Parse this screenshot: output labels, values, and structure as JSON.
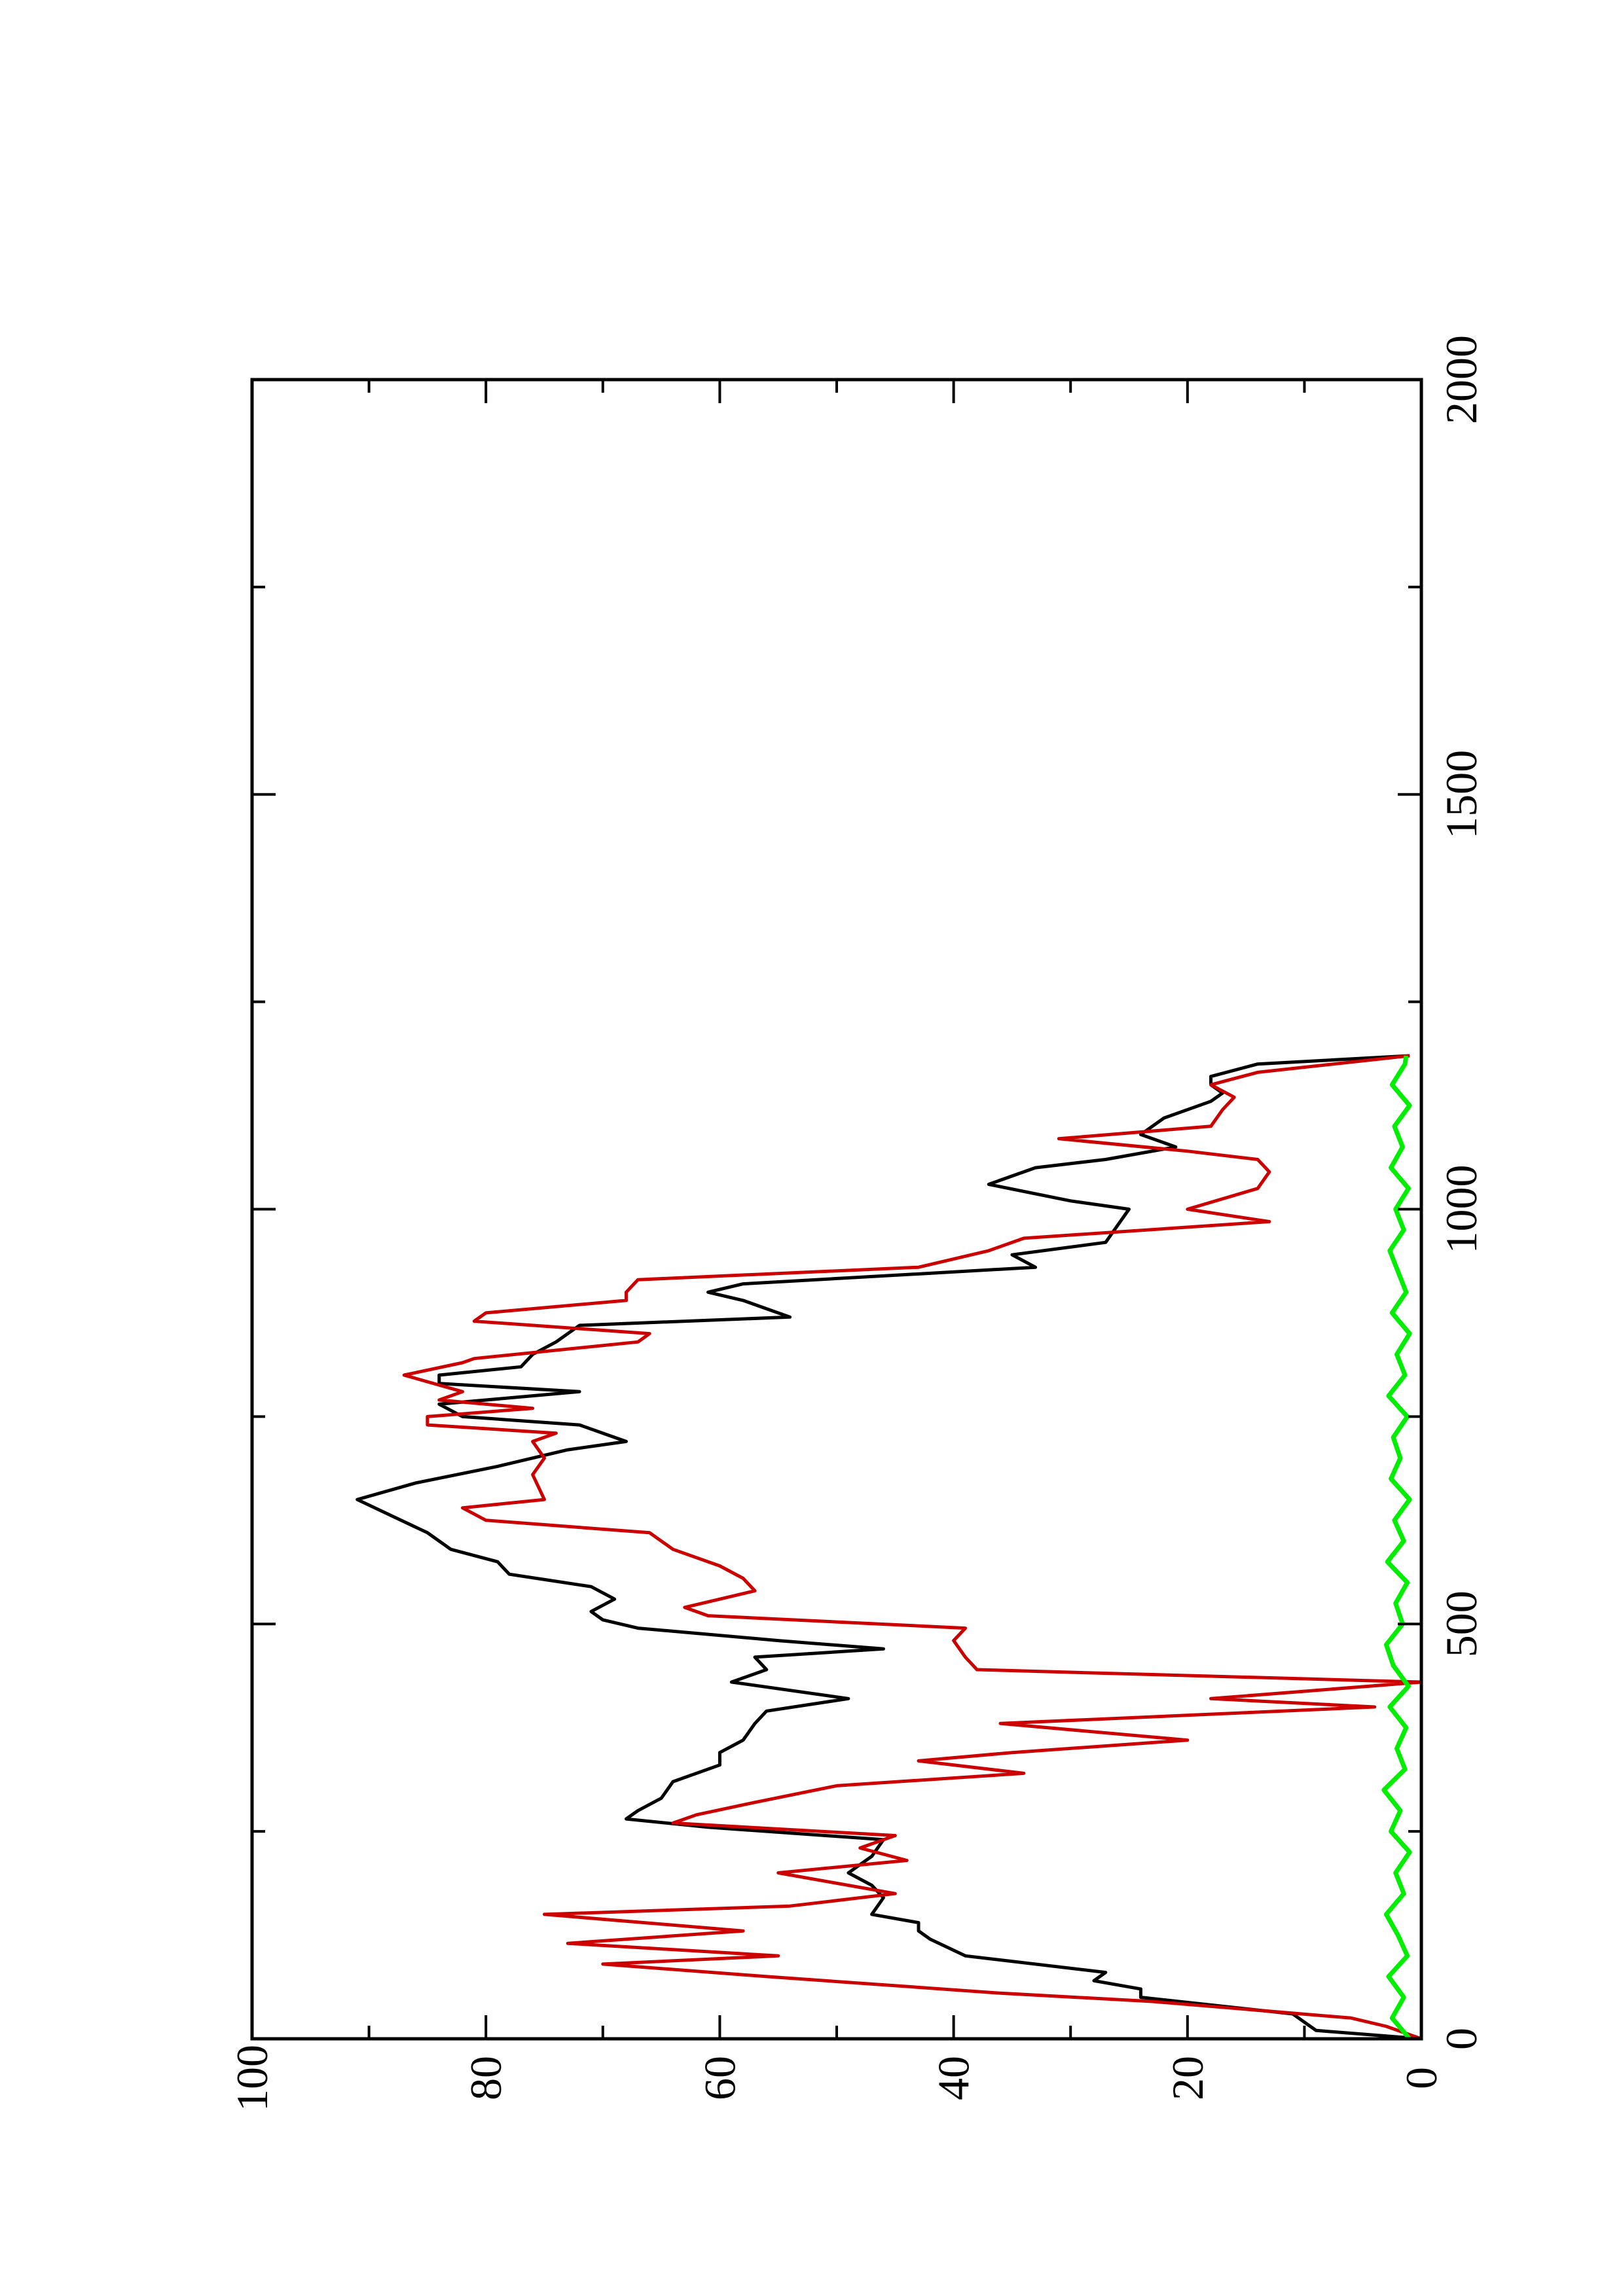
{
  "chart_data": {
    "type": "line",
    "title": "",
    "xlabel": "",
    "ylabel": "",
    "orientation": "rotated 90 degrees counter-clockwise",
    "xlim": [
      0,
      2000
    ],
    "ylim": [
      0,
      100
    ],
    "x_ticks": [
      "0",
      "500",
      "1000",
      "1500",
      "2000"
    ],
    "y_ticks": [
      "0",
      "20",
      "40",
      "60",
      "80",
      "100"
    ],
    "grid": false,
    "legend": "none",
    "series": [
      {
        "color": "#000000",
        "x": [
          0,
          10,
          30,
          50,
          60,
          70,
          80,
          100,
          120,
          130,
          140,
          150,
          170,
          185,
          200,
          220,
          240,
          255,
          265,
          275,
          290,
          310,
          330,
          345,
          360,
          380,
          395,
          410,
          430,
          445,
          460,
          470,
          480,
          495,
          505,
          515,
          530,
          545,
          560,
          575,
          590,
          610,
          630,
          650,
          670,
          690,
          710,
          720,
          725,
          740,
          750,
          765,
          780,
          790,
          800,
          810,
          825,
          840,
          850,
          860,
          870,
          880,
          890,
          900,
          910,
          930,
          945,
          960,
          980,
          1000,
          1010,
          1030,
          1050,
          1060,
          1075,
          1090,
          1110,
          1130,
          1140,
          1150,
          1160,
          1175,
          1185
        ],
        "y": [
          0,
          9,
          11,
          24,
          24,
          28,
          27,
          39,
          42,
          43,
          43,
          47,
          46,
          47,
          49,
          47,
          46,
          61,
          68,
          67,
          65,
          64,
          60,
          60,
          58,
          57,
          56,
          49,
          59,
          56,
          57,
          46,
          55,
          67,
          70,
          71,
          69,
          71,
          78,
          79,
          83,
          85,
          88,
          91,
          86,
          79,
          73,
          68,
          69,
          72,
          82,
          84,
          72,
          84,
          84,
          77,
          76,
          74,
          73,
          72,
          54,
          56,
          58,
          61,
          58,
          33,
          35,
          27,
          26,
          25,
          30,
          37,
          33,
          27,
          21,
          24,
          22,
          18,
          17,
          18,
          18,
          14,
          1
        ]
      },
      {
        "color": "#cc0000",
        "x": [
          0,
          15,
          25,
          45,
          55,
          75,
          90,
          100,
          115,
          130,
          150,
          160,
          175,
          200,
          215,
          230,
          245,
          260,
          270,
          285,
          305,
          320,
          335,
          345,
          360,
          380,
          400,
          410,
          430,
          445,
          460,
          480,
          495,
          510,
          520,
          540,
          555,
          570,
          590,
          610,
          625,
          640,
          650,
          680,
          700,
          720,
          730,
          740,
          750,
          760,
          770,
          780,
          800,
          815,
          820,
          840,
          850,
          865,
          875,
          890,
          900,
          915,
          930,
          950,
          965,
          985,
          1000,
          1025,
          1045,
          1060,
          1070,
          1085,
          1100,
          1120,
          1135,
          1150,
          1165,
          1185
        ],
        "y": [
          0,
          3,
          6,
          23,
          36,
          56,
          70,
          55,
          73,
          58,
          75,
          54,
          45,
          55,
          44,
          48,
          45,
          64,
          62,
          57,
          50,
          34,
          43,
          35,
          20,
          36,
          4,
          18,
          0,
          38,
          39,
          40,
          39,
          61,
          63,
          57,
          58,
          60,
          64,
          66,
          80,
          82,
          75,
          76,
          75,
          76,
          74,
          85,
          85,
          76,
          84,
          82,
          87,
          82,
          81,
          67,
          66,
          81,
          80,
          68,
          68,
          67,
          43,
          37,
          34,
          13,
          20,
          14,
          13,
          14,
          20,
          31,
          18,
          17,
          16,
          18,
          14,
          1
        ]
      },
      {
        "color": "#00ee00",
        "x": [
          0,
          25,
          50,
          75,
          100,
          125,
          150,
          175,
          200,
          225,
          250,
          275,
          300,
          325,
          350,
          375,
          400,
          425,
          450,
          475,
          500,
          525,
          550,
          575,
          600,
          625,
          650,
          675,
          700,
          725,
          750,
          775,
          800,
          825,
          850,
          875,
          900,
          925,
          950,
          975,
          1000,
          1025,
          1050,
          1075,
          1100,
          1125,
          1150,
          1175,
          1185
        ],
        "y": [
          1.0,
          2.5,
          1.5,
          2.8,
          1.2,
          2.0,
          3.0,
          1.5,
          2.2,
          1.0,
          2.6,
          1.8,
          3.2,
          1.4,
          2.1,
          1.3,
          2.7,
          1.1,
          2.4,
          3.0,
          1.6,
          2.2,
          1.2,
          2.9,
          1.5,
          2.3,
          1.0,
          2.6,
          1.8,
          2.4,
          1.2,
          2.8,
          1.4,
          2.1,
          1.0,
          2.5,
          1.3,
          2.0,
          2.7,
          1.5,
          2.2,
          1.1,
          2.6,
          1.6,
          2.3,
          1.0,
          2.5,
          1.4,
          1.3
        ]
      }
    ]
  }
}
